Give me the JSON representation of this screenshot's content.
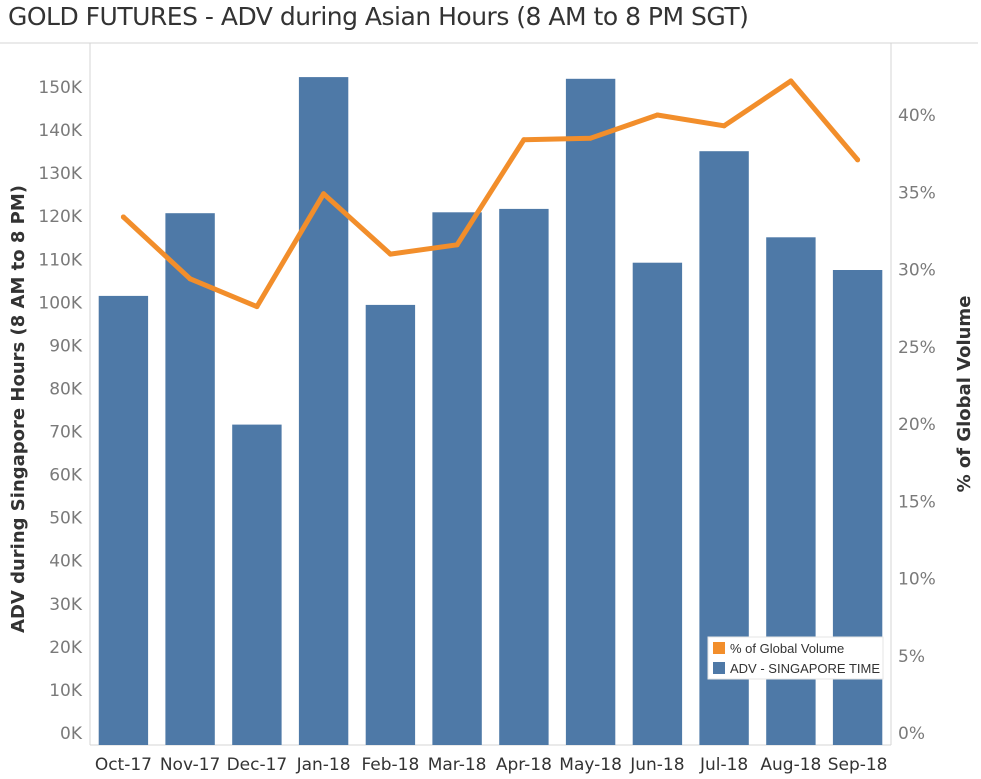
{
  "chart_data": {
    "type": "bar",
    "title": "GOLD FUTURES - ADV during Asian Hours (8 AM to 8 PM SGT)",
    "categories": [
      "Oct-17",
      "Nov-17",
      "Dec-17",
      "Jan-18",
      "Feb-18",
      "Mar-18",
      "Apr-18",
      "May-18",
      "Jun-18",
      "Jul-18",
      "Aug-18",
      "Sep-18"
    ],
    "series": [
      {
        "name": "ADV - SINGAPORE TIME",
        "type": "bar",
        "axis": "left",
        "color": "#4e79a7",
        "values": [
          101500,
          120700,
          71600,
          152300,
          99400,
          120900,
          121700,
          151900,
          109200,
          135100,
          115100,
          107500
        ]
      },
      {
        "name": "% of Global Volume",
        "type": "line",
        "axis": "right",
        "color": "#f28e2b",
        "values": [
          33.4,
          29.4,
          27.6,
          34.9,
          31.0,
          31.6,
          38.4,
          38.5,
          40.0,
          39.3,
          42.2,
          37.1
        ]
      }
    ],
    "ylabel": "ADV during Singapore Hours (8 AM to 8 PM)",
    "y2label": "% of Global Volume",
    "ylim": [
      0,
      157500
    ],
    "y2lim": [
      0,
      43.8
    ],
    "yticks": [
      "0K",
      "10K",
      "20K",
      "30K",
      "40K",
      "50K",
      "60K",
      "70K",
      "80K",
      "90K",
      "100K",
      "110K",
      "120K",
      "130K",
      "140K",
      "150K"
    ],
    "y2ticks": [
      "0%",
      "5%",
      "10%",
      "15%",
      "20%",
      "25%",
      "30%",
      "35%",
      "40%"
    ],
    "legend_position": "bottom-right",
    "grid": false
  }
}
